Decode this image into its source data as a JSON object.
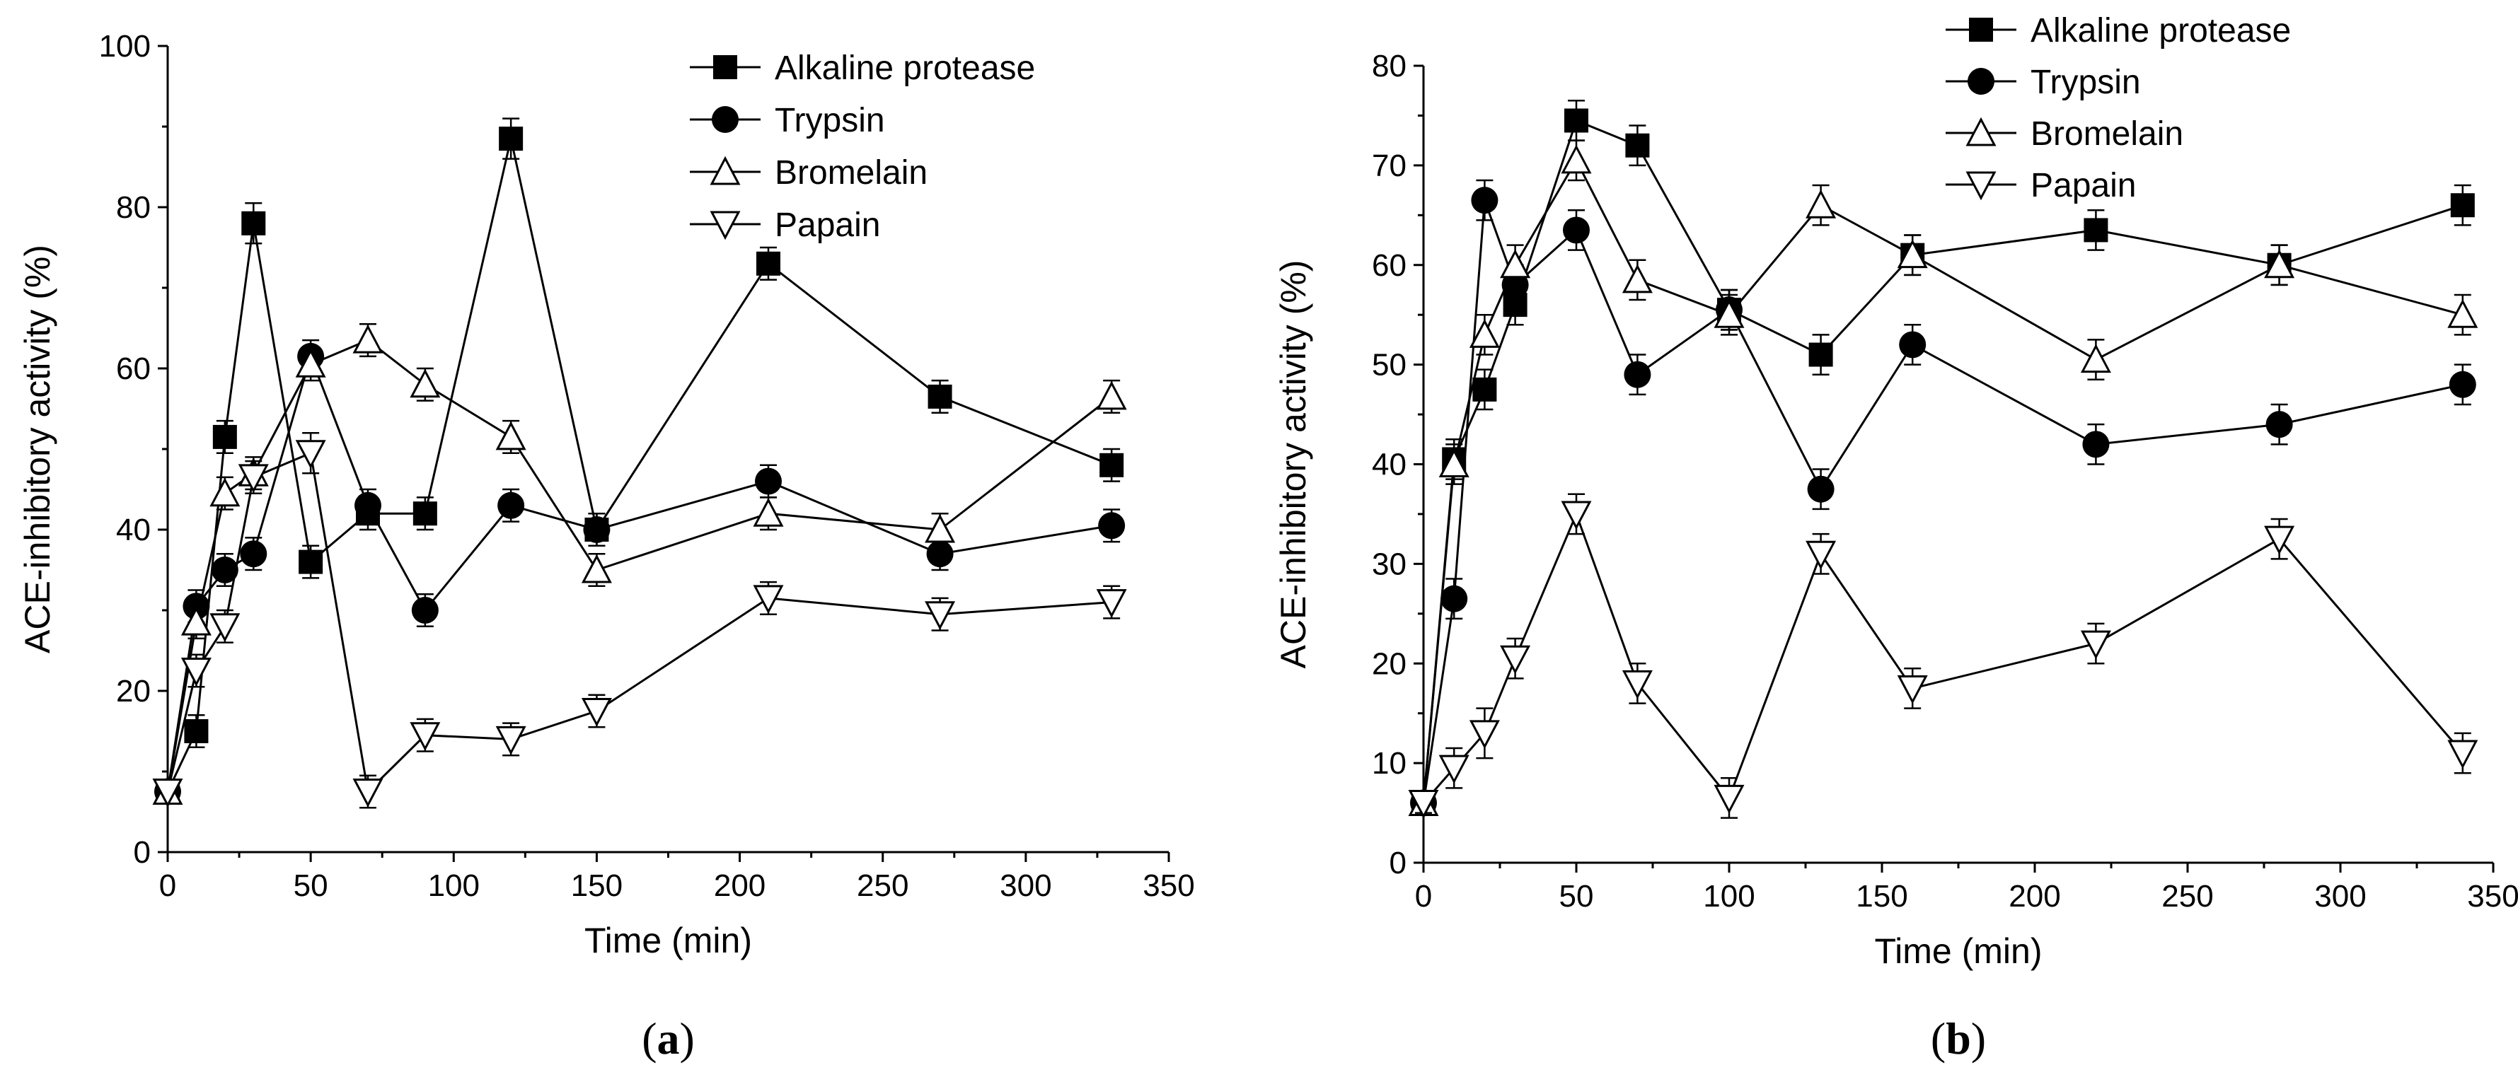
{
  "colors": {
    "ink": "#000000",
    "background": "#ffffff"
  },
  "chart_data": [
    {
      "type": "line",
      "panel_label": "a",
      "xlabel": "Time (min)",
      "ylabel": "ACE-inhibitory activity (%)",
      "xlim": [
        0,
        350
      ],
      "ylim": [
        0,
        100
      ],
      "xticks": [
        0,
        50,
        100,
        150,
        200,
        250,
        300,
        350
      ],
      "yticks": [
        0,
        20,
        40,
        60,
        80,
        100
      ],
      "legend_position": "top-right",
      "series": [
        {
          "name": "Alkaline protease",
          "marker": "square-filled",
          "x": [
            0,
            10,
            20,
            30,
            50,
            70,
            90,
            120,
            150,
            210,
            270,
            330
          ],
          "y": [
            7.5,
            15,
            51.5,
            78,
            36,
            42,
            42,
            88.5,
            40,
            73,
            56.5,
            48
          ],
          "err": [
            1.5,
            2,
            2,
            2.5,
            2,
            2,
            2,
            2.5,
            2,
            2,
            2,
            2
          ]
        },
        {
          "name": "Trypsin",
          "marker": "circle-filled",
          "x": [
            0,
            10,
            20,
            30,
            50,
            70,
            90,
            120,
            150,
            210,
            270,
            330
          ],
          "y": [
            7.5,
            30.5,
            35,
            37,
            61.5,
            43,
            30,
            43,
            40,
            46,
            37,
            40.5
          ],
          "err": [
            1.5,
            2,
            2,
            2,
            2,
            2,
            2,
            2,
            2,
            2,
            2,
            2
          ]
        },
        {
          "name": "Bromelain",
          "marker": "triangle-up-open",
          "x": [
            0,
            10,
            20,
            30,
            50,
            70,
            90,
            120,
            150,
            210,
            270,
            330
          ],
          "y": [
            7.5,
            28.5,
            44.5,
            47,
            60.5,
            63.5,
            58,
            51.5,
            35,
            42,
            40,
            56.5
          ],
          "err": [
            1.5,
            2,
            2,
            2,
            2,
            2,
            2,
            2,
            2,
            2,
            2,
            2
          ]
        },
        {
          "name": "Papain",
          "marker": "triangle-down-open",
          "x": [
            0,
            10,
            20,
            30,
            50,
            70,
            90,
            120,
            150,
            210,
            270,
            330
          ],
          "y": [
            7.5,
            22.5,
            28,
            46.5,
            49.5,
            7.5,
            14.5,
            14,
            17.5,
            31.5,
            29.5,
            31
          ],
          "err": [
            1.5,
            2,
            2,
            2,
            2.5,
            2,
            2,
            2,
            2,
            2,
            2,
            2
          ]
        }
      ]
    },
    {
      "type": "line",
      "panel_label": "b",
      "xlabel": "Time (min)",
      "ylabel": "ACE-inhibitory activity (%)",
      "xlim": [
        0,
        350
      ],
      "ylim": [
        0,
        80
      ],
      "xticks": [
        0,
        50,
        100,
        150,
        200,
        250,
        300,
        350
      ],
      "yticks": [
        0,
        10,
        20,
        30,
        40,
        50,
        60,
        70,
        80
      ],
      "legend_position": "top-right",
      "series": [
        {
          "name": "Alkaline protease",
          "marker": "square-filled",
          "x": [
            0,
            10,
            20,
            30,
            50,
            70,
            100,
            130,
            160,
            220,
            280,
            340
          ],
          "y": [
            6,
            40.5,
            47.5,
            56,
            74.5,
            72,
            55.5,
            51,
            61,
            63.5,
            60,
            66
          ],
          "err": [
            1,
            2,
            2,
            2,
            2,
            2,
            2,
            2,
            2,
            2,
            2,
            2
          ]
        },
        {
          "name": "Trypsin",
          "marker": "circle-filled",
          "x": [
            0,
            10,
            20,
            30,
            50,
            70,
            100,
            130,
            160,
            220,
            280,
            340
          ],
          "y": [
            6,
            26.5,
            66.5,
            58,
            63.5,
            49,
            55.5,
            37.5,
            52,
            42,
            44,
            48
          ],
          "err": [
            1,
            2,
            2,
            2,
            2,
            2,
            2,
            2,
            2,
            2,
            2,
            2
          ]
        },
        {
          "name": "Bromelain",
          "marker": "triangle-up-open",
          "x": [
            0,
            10,
            20,
            30,
            50,
            70,
            100,
            130,
            160,
            220,
            280,
            340
          ],
          "y": [
            6,
            40,
            53,
            60,
            70.5,
            58.5,
            55,
            66,
            61,
            50.5,
            60,
            55
          ],
          "err": [
            1,
            2,
            2,
            2,
            2,
            2,
            2,
            2,
            2,
            2,
            2,
            2
          ]
        },
        {
          "name": "Papain",
          "marker": "triangle-down-open",
          "x": [
            0,
            10,
            20,
            30,
            50,
            70,
            100,
            130,
            160,
            220,
            280,
            340
          ],
          "y": [
            6,
            9.5,
            13,
            20.5,
            35,
            18,
            6.5,
            31,
            17.5,
            22,
            32.5,
            11
          ],
          "err": [
            1,
            2,
            2.5,
            2,
            2,
            2,
            2,
            2,
            2,
            2,
            2,
            2
          ]
        }
      ]
    }
  ]
}
